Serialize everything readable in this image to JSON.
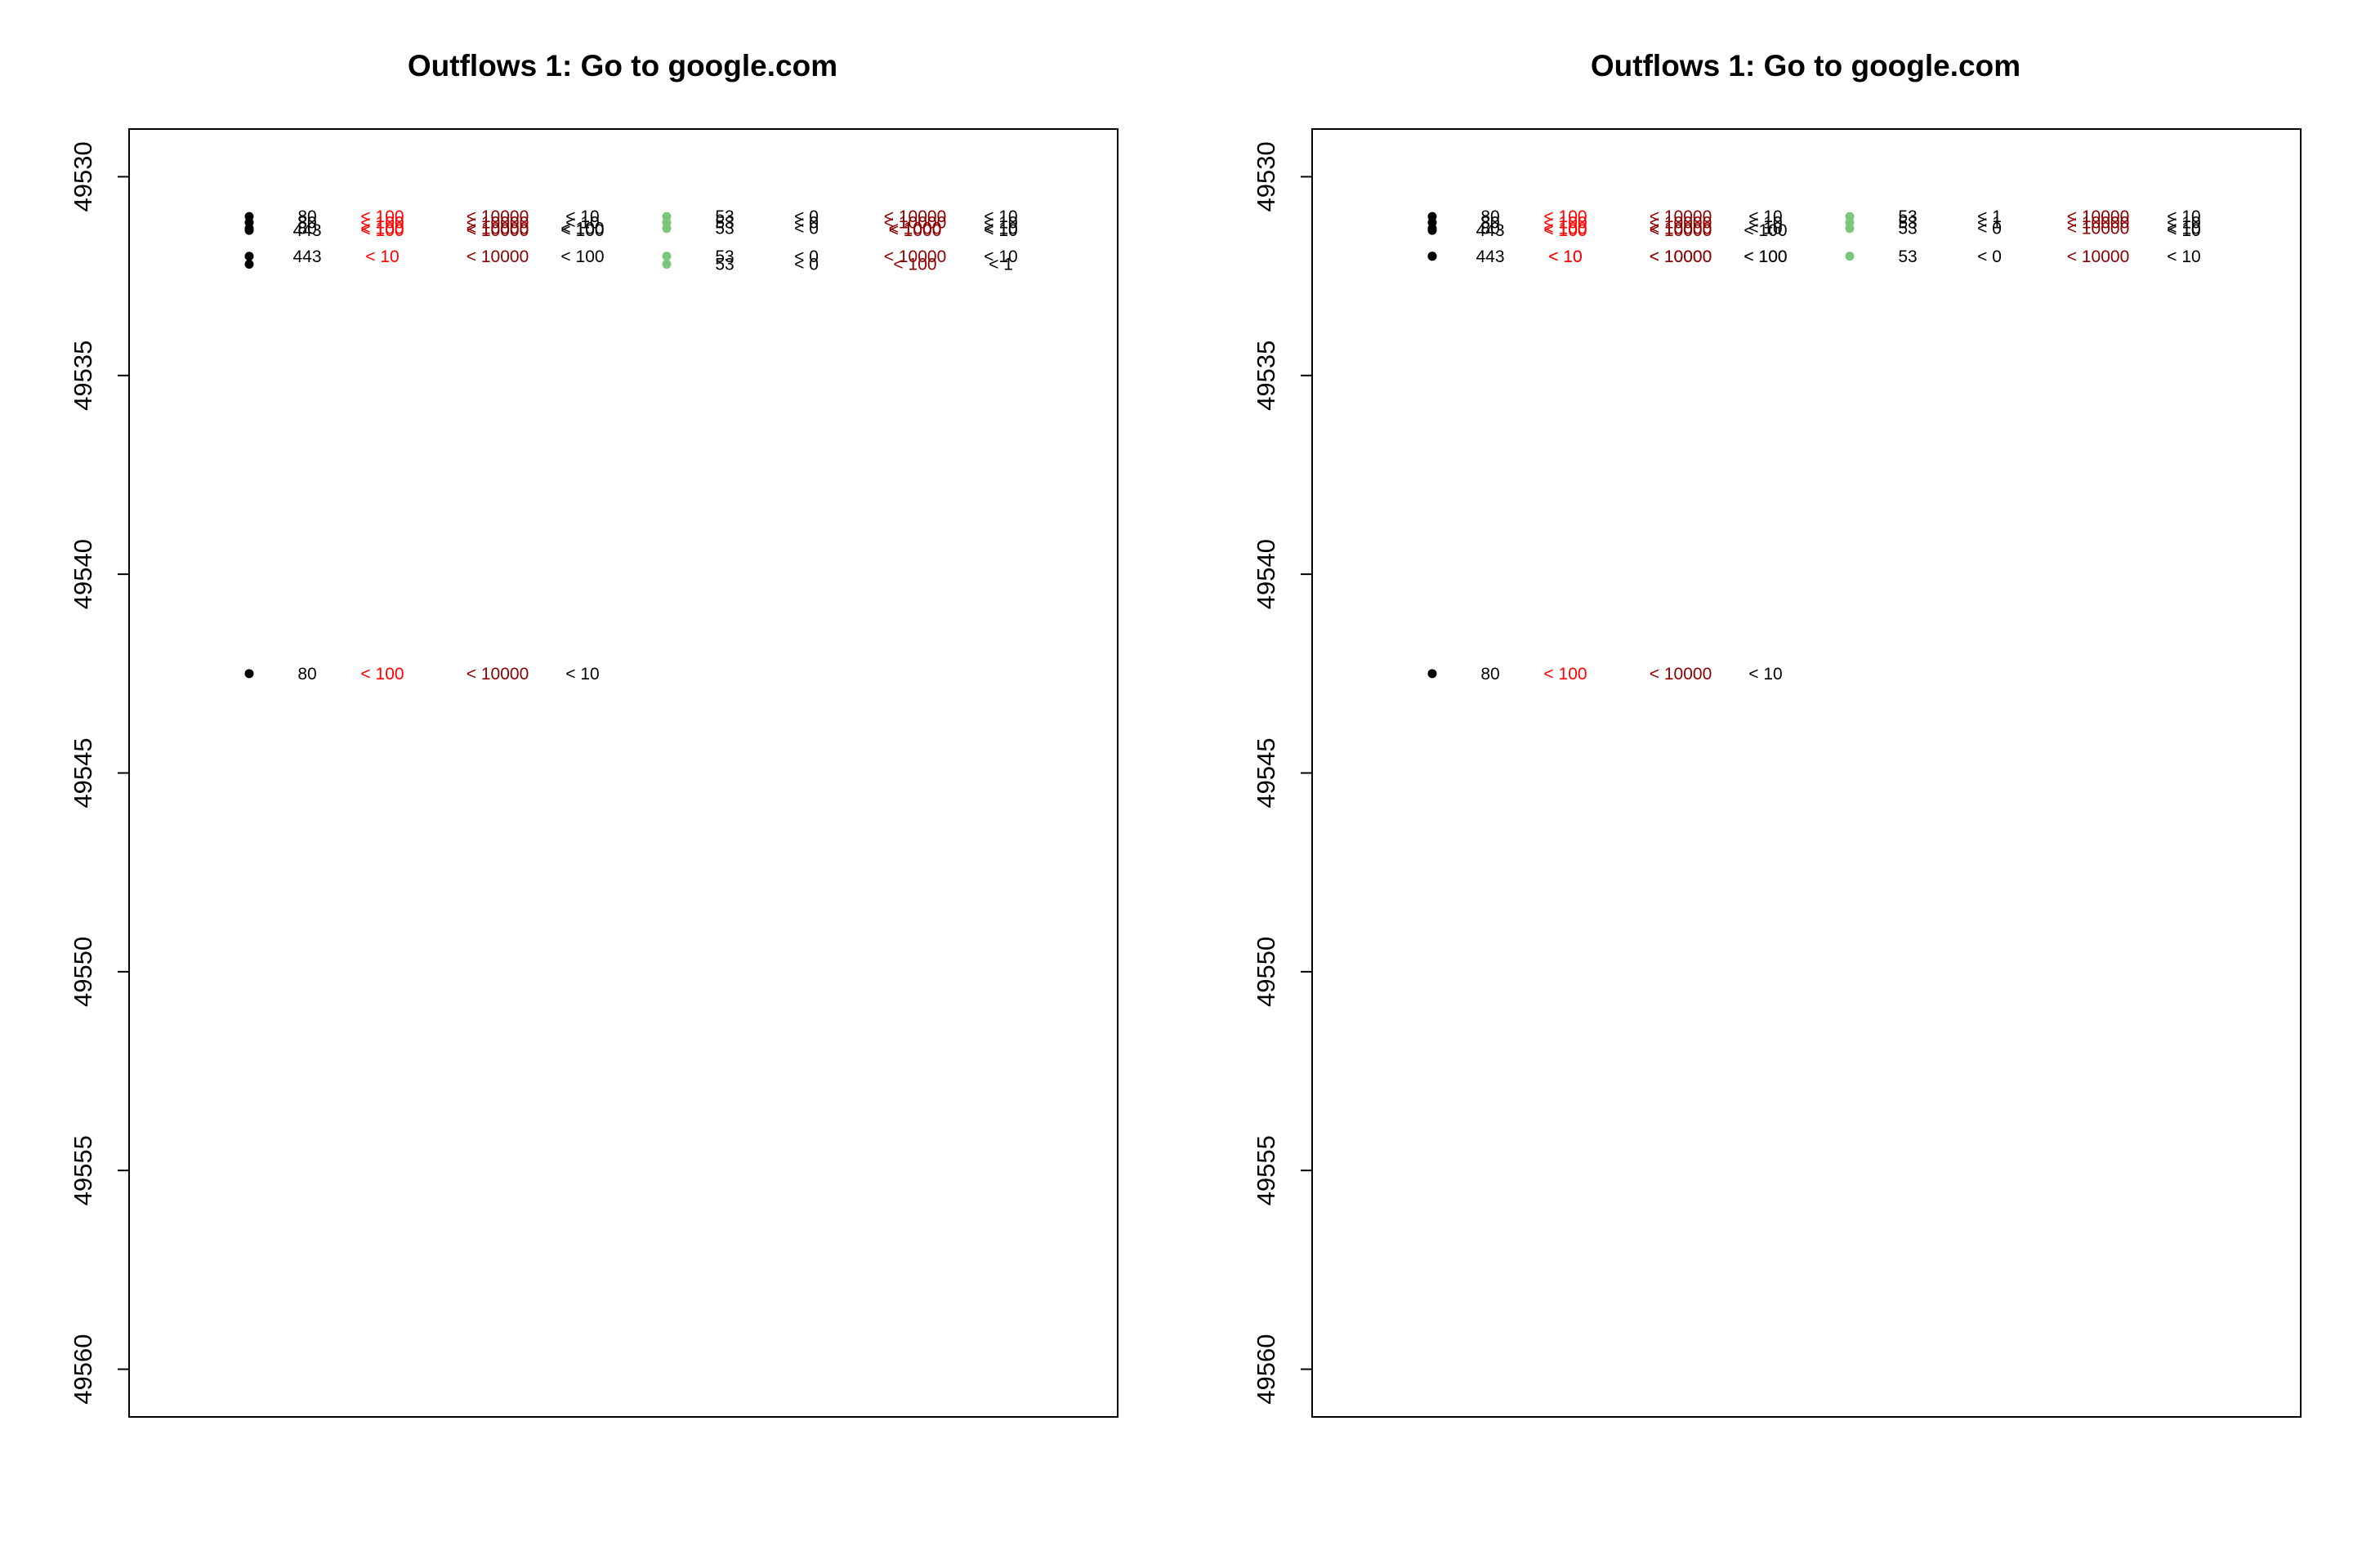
{
  "colors": {
    "black": "#000000",
    "red": "#ff0000",
    "darkred": "#8b0000",
    "green": "#7ac67a"
  },
  "chart_data": [
    {
      "type": "scatter",
      "title": "Outflows 1: Go to google.com",
      "xlabel": "",
      "ylabel": "",
      "ylim": [
        49561.2,
        49528.8
      ],
      "yticks": [
        49530,
        49535,
        49540,
        49545,
        49550,
        49555,
        49560
      ],
      "ytick_labels": [
        "49530",
        "49535",
        "49540",
        "49545",
        "49550",
        "49555",
        "49560"
      ],
      "grid": false,
      "columns": [
        {
          "x": 1,
          "color": "black",
          "kind": "dot"
        },
        {
          "x": 2,
          "color": "black",
          "kind": "text"
        },
        {
          "x": 3,
          "color": "red",
          "kind": "text"
        },
        {
          "x": 4,
          "color": "darkred",
          "kind": "text"
        },
        {
          "x": 5,
          "color": "black",
          "kind": "text"
        },
        {
          "x": 6,
          "color": "green",
          "kind": "dot"
        },
        {
          "x": 7,
          "color": "black",
          "kind": "text"
        },
        {
          "x": 8,
          "color": "black",
          "kind": "text"
        },
        {
          "x": 9,
          "color": "darkred",
          "kind": "text"
        },
        {
          "x": 10,
          "color": "black",
          "kind": "text"
        }
      ],
      "rows": [
        {
          "y": 49531.0,
          "values": [
            "",
            "80",
            "< 100",
            "< 10000",
            "< 10",
            "",
            "53",
            "< 0",
            "< 10000",
            "< 10"
          ]
        },
        {
          "y": 49531.15,
          "values": [
            "",
            "80",
            "< 100",
            "< 10000",
            "< 10",
            "",
            "53",
            "< 0",
            "< 10000",
            "< 10"
          ]
        },
        {
          "y": 49531.3,
          "values": [
            "",
            "80",
            "< 100",
            "< 10000",
            "< 100",
            "",
            "53",
            "< 0",
            "< 1000",
            "< 10"
          ]
        },
        {
          "y": 49531.35,
          "values": [
            "",
            "443",
            "< 100",
            "< 10000",
            "< 100",
            "",
            "",
            "",
            "< 1000",
            "< 10"
          ]
        },
        {
          "y": 49532.0,
          "values": [
            "",
            "443",
            "< 10",
            "< 10000",
            "< 100",
            "",
            "53",
            "< 0",
            "< 10000",
            "< 10"
          ]
        },
        {
          "y": 49532.2,
          "values": [
            "",
            "",
            "",
            "",
            "",
            "",
            "53",
            "< 0",
            "< 100",
            "< 1"
          ]
        },
        {
          "y": 49542.5,
          "values": [
            "",
            "80",
            "< 100",
            "< 10000",
            "< 10",
            "",
            "",
            "",
            "",
            ""
          ]
        }
      ]
    },
    {
      "type": "scatter",
      "title": "Outflows 1: Go to google.com",
      "xlabel": "",
      "ylabel": "",
      "ylim": [
        49561.2,
        49528.8
      ],
      "yticks": [
        49530,
        49535,
        49540,
        49545,
        49550,
        49555,
        49560
      ],
      "ytick_labels": [
        "49530",
        "49535",
        "49540",
        "49545",
        "49550",
        "49555",
        "49560"
      ],
      "grid": false,
      "columns": [
        {
          "x": 1,
          "color": "black",
          "kind": "dot"
        },
        {
          "x": 2,
          "color": "black",
          "kind": "text"
        },
        {
          "x": 3,
          "color": "red",
          "kind": "text"
        },
        {
          "x": 4,
          "color": "darkred",
          "kind": "text"
        },
        {
          "x": 5,
          "color": "black",
          "kind": "text"
        },
        {
          "x": 6,
          "color": "green",
          "kind": "dot"
        },
        {
          "x": 7,
          "color": "black",
          "kind": "text"
        },
        {
          "x": 8,
          "color": "black",
          "kind": "text"
        },
        {
          "x": 9,
          "color": "darkred",
          "kind": "text"
        },
        {
          "x": 10,
          "color": "black",
          "kind": "text"
        }
      ],
      "rows": [
        {
          "y": 49531.0,
          "values": [
            "",
            "80",
            "< 100",
            "< 10000",
            "< 10",
            "",
            "53",
            "< 1",
            "< 10000",
            "< 10"
          ]
        },
        {
          "y": 49531.15,
          "values": [
            "",
            "80",
            "< 100",
            "< 10000",
            "< 10",
            "",
            "53",
            "< 1",
            "< 10000",
            "< 10"
          ]
        },
        {
          "y": 49531.3,
          "values": [
            "",
            "80",
            "< 100",
            "< 10000",
            "< 10",
            "",
            "53",
            "< 0",
            "< 10000",
            "< 10"
          ]
        },
        {
          "y": 49531.35,
          "values": [
            "",
            "443",
            "< 100",
            "< 10000",
            "< 100",
            "",
            "",
            "",
            "",
            "< 10"
          ]
        },
        {
          "y": 49532.0,
          "values": [
            "",
            "443",
            "< 10",
            "< 10000",
            "< 100",
            "",
            "53",
            "< 0",
            "< 10000",
            "< 10"
          ]
        },
        {
          "y": 49532.0,
          "values": [
            "",
            "",
            "< 10",
            "< 10000",
            "< 100",
            "",
            "",
            "",
            "",
            ""
          ]
        },
        {
          "y": 49542.5,
          "values": [
            "",
            "80",
            "< 100",
            "< 10000",
            "< 10",
            "",
            "",
            "",
            "",
            ""
          ]
        }
      ]
    }
  ]
}
